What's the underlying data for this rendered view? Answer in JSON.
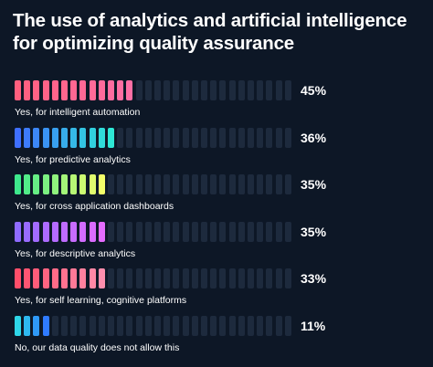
{
  "title": "The use of analytics and artificial intelligence for optimizing quality assurance",
  "colors": {
    "background": "#0d1726",
    "empty_segment": "#1d2a3d",
    "series_gradients": [
      [
        "#ff5f7e",
        "#ff6fa5"
      ],
      [
        "#3f6fff",
        "#2ee8d6"
      ],
      [
        "#3ee88c",
        "#f4ff6a"
      ],
      [
        "#8f6bff",
        "#e56cff"
      ],
      [
        "#ff4e6a",
        "#ff8fae"
      ],
      [
        "#2ed6e8",
        "#2f7bff"
      ]
    ]
  },
  "chart_data": {
    "type": "bar",
    "title": "The use of analytics and artificial intelligence for optimizing quality assurance",
    "categories": [
      "Yes, for intelligent automation",
      "Yes, for predictive analytics",
      "Yes, for cross application dashboards",
      "Yes, for descriptive analytics",
      "Yes, for self learning, cognitive platforms",
      "No, our data quality does not allow this"
    ],
    "values": [
      45,
      36,
      35,
      35,
      33,
      11
    ],
    "value_labels": [
      "45%",
      "36%",
      "35%",
      "35%",
      "33%",
      "11%"
    ],
    "ylim": [
      0,
      100
    ],
    "unit": "%",
    "grid": false,
    "legend": "none"
  }
}
